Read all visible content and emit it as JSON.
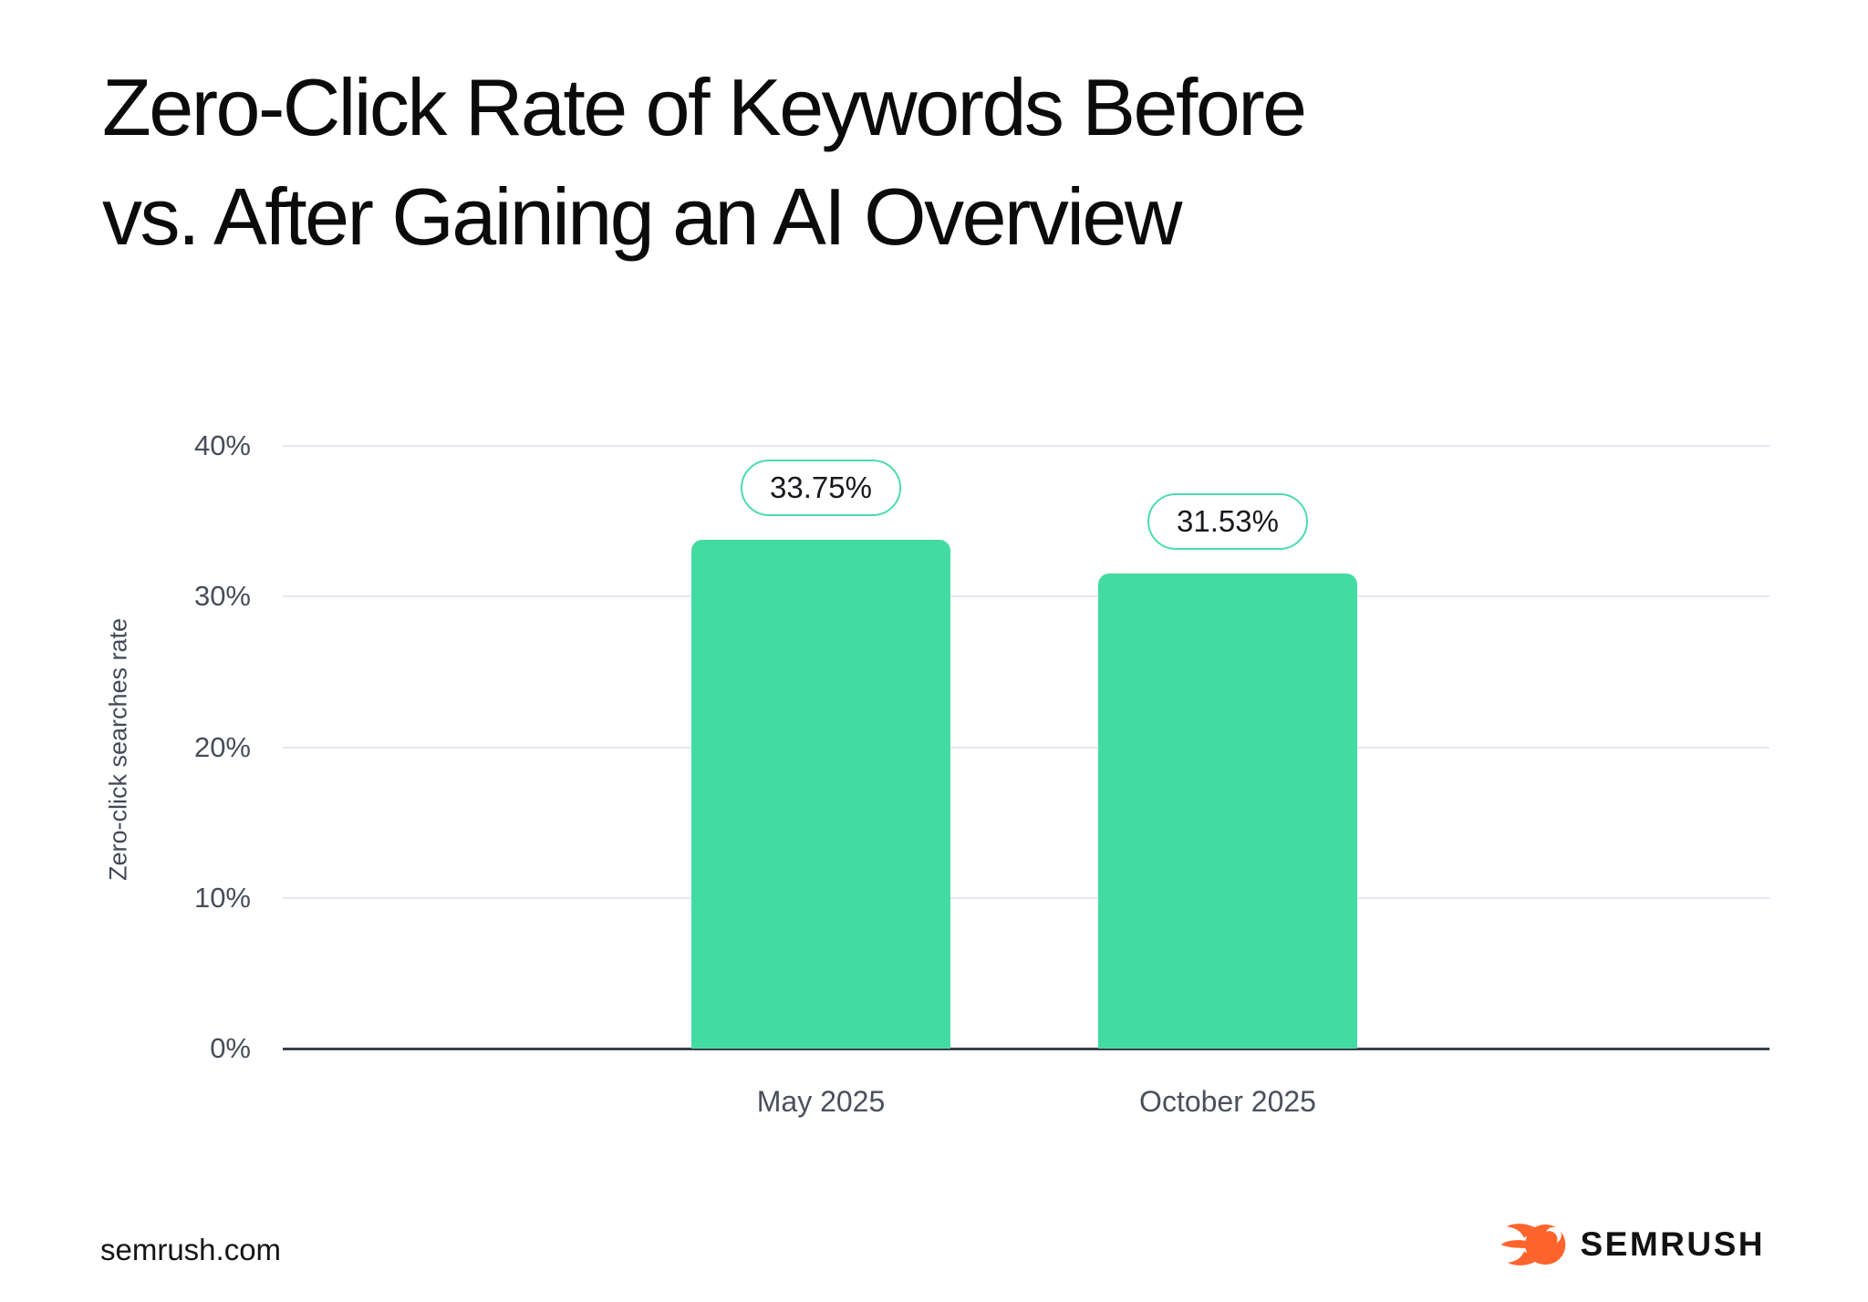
{
  "title": {
    "line1": "Zero-Click Rate of Keywords Before",
    "line2": "vs. After Gaining an AI Overview"
  },
  "footer": {
    "site": "semrush.com",
    "brand": "SEMRUSH"
  },
  "colors": {
    "bar": "#44dba2",
    "pill_border": "#4adea6",
    "gridline": "#e3e7f1",
    "axis": "#3a414d",
    "tick_text": "#474d59",
    "title_text": "#0b0b0c",
    "brand_orange": "#ff642d"
  },
  "chart_data": {
    "type": "bar",
    "title": "Zero-Click Rate of Keywords Before vs. After Gaining an AI Overview",
    "categories": [
      "May 2025",
      "October 2025"
    ],
    "values": [
      33.75,
      31.53
    ],
    "value_labels": [
      "33.75%",
      "31.53%"
    ],
    "xlabel": "",
    "ylabel": "Zero-click searches rate",
    "ylim": [
      0,
      40
    ],
    "yticks": [
      0,
      10,
      20,
      30,
      40
    ],
    "ytick_labels": [
      "0%",
      "10%",
      "20%",
      "30%",
      "40%"
    ],
    "grid": "horizontal",
    "legend": "none",
    "bar_color": "#44dba2"
  }
}
